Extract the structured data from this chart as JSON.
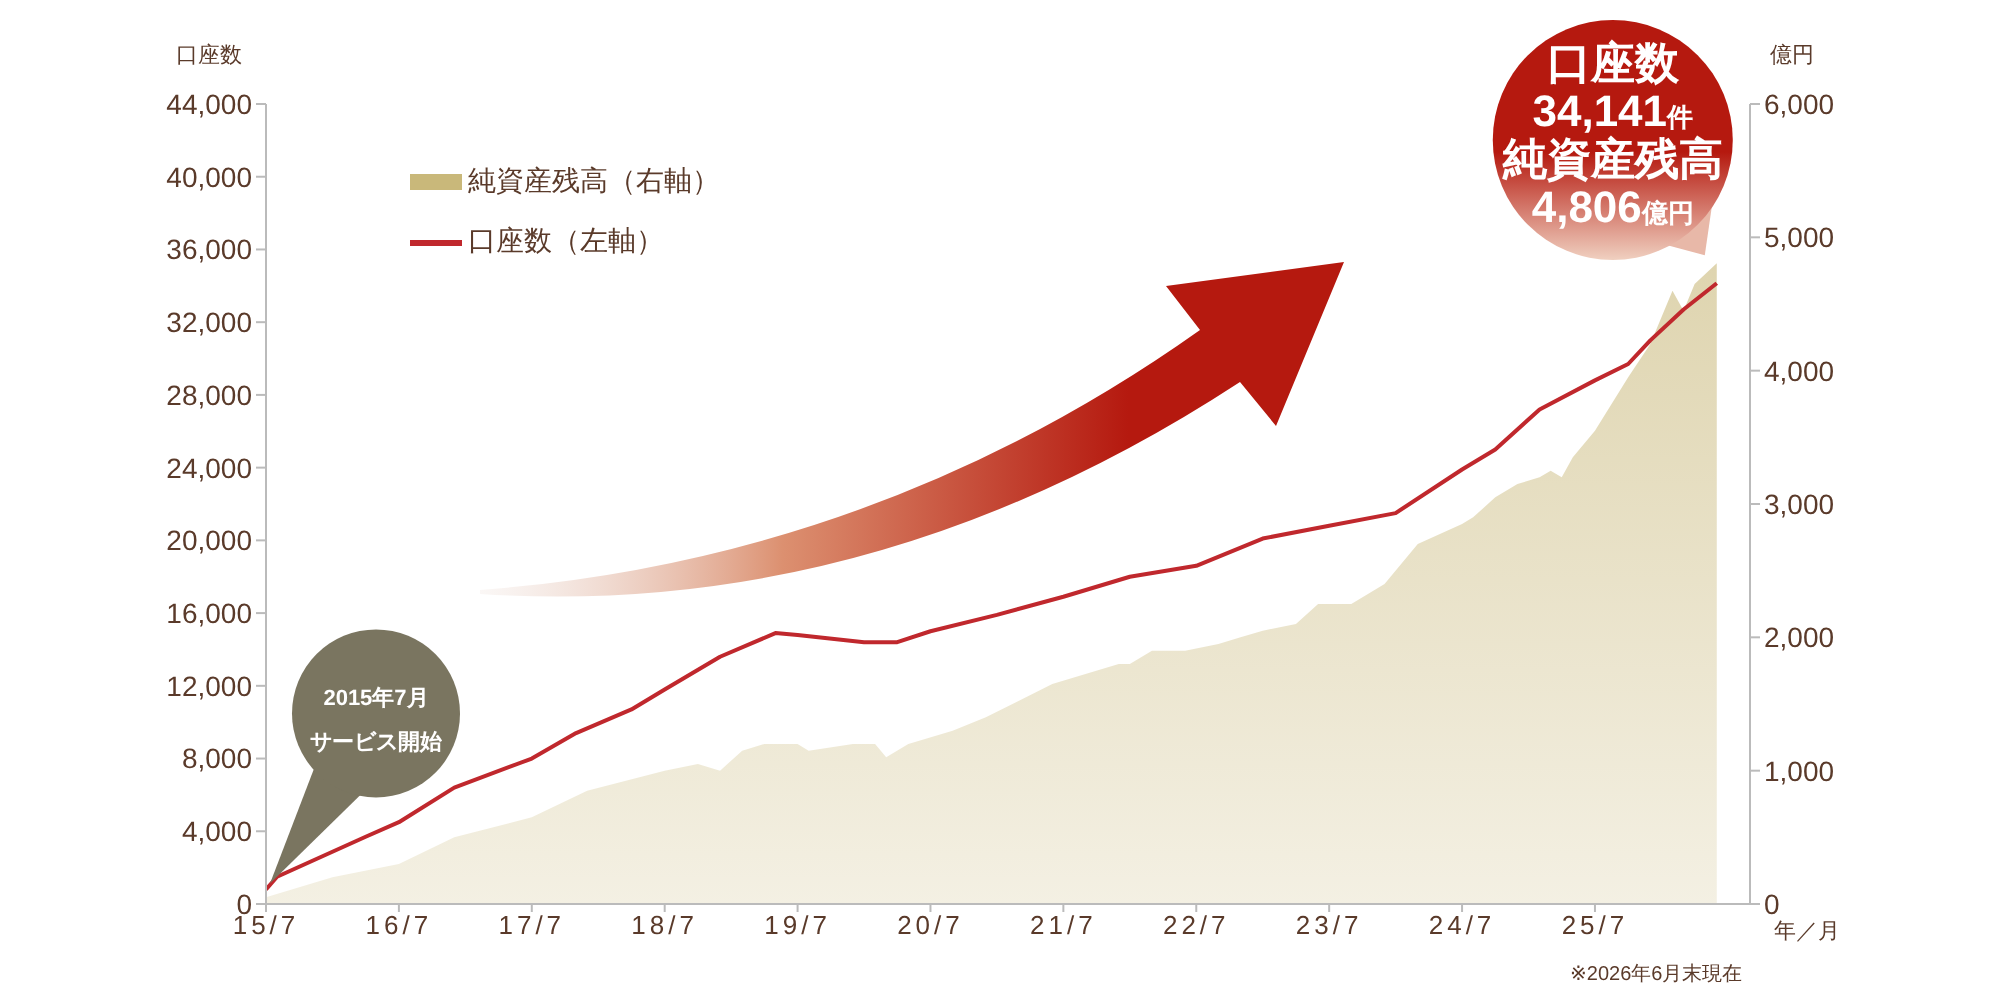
{
  "chart_data": {
    "type": "area",
    "xlabel": "年／月",
    "ylabel": "口座数",
    "y2label": "億円",
    "xlim": [
      "2015-07",
      "2026-09"
    ],
    "xticks": [
      {
        "value": "2015-07",
        "label": "15/7"
      },
      {
        "value": "2016-07",
        "label": "16/7"
      },
      {
        "value": "2017-07",
        "label": "17/7"
      },
      {
        "value": "2018-07",
        "label": "18/7"
      },
      {
        "value": "2019-07",
        "label": "19/7"
      },
      {
        "value": "2020-07",
        "label": "20/7"
      },
      {
        "value": "2021-07",
        "label": "21/7"
      },
      {
        "value": "2022-07",
        "label": "22/7"
      },
      {
        "value": "2023-07",
        "label": "23/7"
      },
      {
        "value": "2024-07",
        "label": "24/7"
      },
      {
        "value": "2025-07",
        "label": "25/7"
      }
    ],
    "ylim": [
      0,
      44000
    ],
    "yticks": [
      {
        "value": 0,
        "label": "0"
      },
      {
        "value": 4000,
        "label": "4,000"
      },
      {
        "value": 8000,
        "label": "8,000"
      },
      {
        "value": 12000,
        "label": "12,000"
      },
      {
        "value": 16000,
        "label": "16,000"
      },
      {
        "value": 20000,
        "label": "20,000"
      },
      {
        "value": 24000,
        "label": "24,000"
      },
      {
        "value": 28000,
        "label": "28,000"
      },
      {
        "value": 32000,
        "label": "32,000"
      },
      {
        "value": 36000,
        "label": "36,000"
      },
      {
        "value": 40000,
        "label": "40,000"
      },
      {
        "value": 44000,
        "label": "44,000"
      }
    ],
    "y2lim": [
      0,
      6000
    ],
    "y2ticks": [
      {
        "value": 0,
        "label": "0"
      },
      {
        "value": 1000,
        "label": "1,000"
      },
      {
        "value": 2000,
        "label": "2,000"
      },
      {
        "value": 3000,
        "label": "3,000"
      },
      {
        "value": 4000,
        "label": "4,000"
      },
      {
        "value": 5000,
        "label": "5,000"
      },
      {
        "value": 6000,
        "label": "6,000"
      }
    ],
    "grid": false,
    "legend": "top left",
    "series": [
      {
        "name": "純資産残高（右軸）",
        "axis": "y2",
        "color": "#c9b87a",
        "x": [
          "2015-07",
          "2016-01",
          "2016-07",
          "2016-12",
          "2017-07",
          "2017-12",
          "2018-07",
          "2018-10",
          "2018-12",
          "2019-02",
          "2019-04",
          "2019-07",
          "2019-08",
          "2019-12",
          "2020-02",
          "2020-03",
          "2020-05",
          "2020-09",
          "2020-12",
          "2021-06",
          "2021-12",
          "2022-01",
          "2022-03",
          "2022-06",
          "2022-09",
          "2022-11",
          "2023-01",
          "2023-04",
          "2023-06",
          "2023-09",
          "2023-12",
          "2024-03",
          "2024-07",
          "2024-08",
          "2024-10",
          "2024-12",
          "2025-02",
          "2025-03",
          "2025-04",
          "2025-05",
          "2025-07",
          "2025-10",
          "2025-12",
          "2026-02",
          "2026-03",
          "2026-04",
          "2026-06"
        ],
        "values": [
          50,
          200,
          300,
          500,
          650,
          850,
          1000,
          1050,
          1000,
          1150,
          1200,
          1200,
          1150,
          1200,
          1200,
          1100,
          1200,
          1300,
          1400,
          1650,
          1800,
          1800,
          1900,
          1900,
          1950,
          2000,
          2050,
          2100,
          2250,
          2250,
          2400,
          2700,
          2850,
          2900,
          3050,
          3150,
          3200,
          3250,
          3200,
          3350,
          3550,
          3950,
          4200,
          4600,
          4450,
          4650,
          4806
        ]
      },
      {
        "name": "口座数（左軸）",
        "type": "line",
        "color": "#c0282d",
        "x": [
          "2015-07",
          "2015-08",
          "2016-04",
          "2016-07",
          "2016-12",
          "2017-07",
          "2017-11",
          "2018-04",
          "2018-07",
          "2018-12",
          "2019-05",
          "2019-07",
          "2020-01",
          "2020-04",
          "2020-07",
          "2021-01",
          "2021-07",
          "2022-01",
          "2022-07",
          "2023-01",
          "2023-07",
          "2024-01",
          "2024-07",
          "2024-10",
          "2025-02",
          "2025-07",
          "2025-10",
          "2025-12",
          "2026-03",
          "2026-06"
        ],
        "values": [
          800,
          1500,
          3700,
          4500,
          6400,
          8000,
          9400,
          10700,
          11800,
          13600,
          14900,
          14800,
          14400,
          14400,
          15000,
          15900,
          16900,
          18000,
          18600,
          20100,
          20800,
          21500,
          23900,
          25000,
          27200,
          28800,
          29700,
          31000,
          32700,
          34141
        ]
      }
    ],
    "annotations": [
      "2015年7月",
      "サービス開始",
      "口座数",
      "34,141件",
      "純資産残高",
      "4,806億円",
      "※2026年6月末現在"
    ]
  }
}
